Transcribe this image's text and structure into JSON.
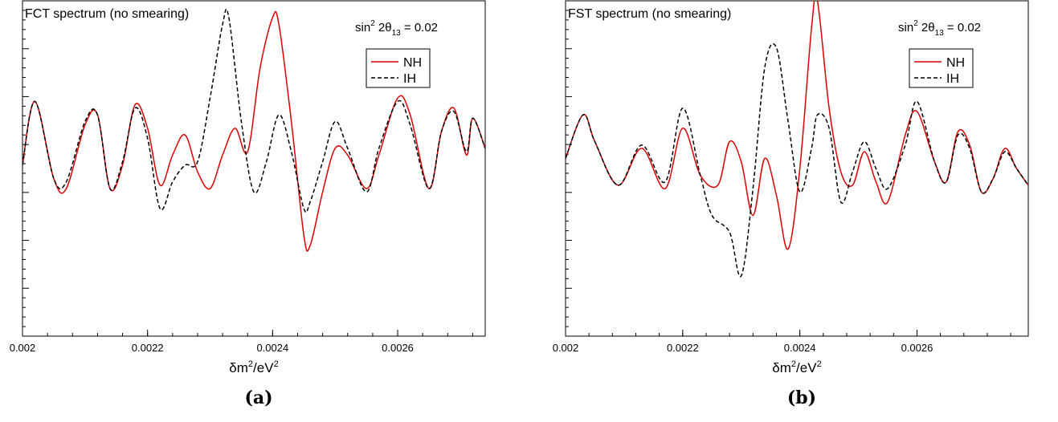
{
  "chart_data": [
    {
      "type": "line",
      "panel": "a",
      "title": "FCT spectrum (no smearing)",
      "annotation": {
        "text": "sin",
        "sup": "2",
        "mid": " 2θ",
        "sub": "13",
        "tail": " = 0.02"
      },
      "xlabel": {
        "text": "δm",
        "sup1": "2",
        "mid": "/eV",
        "sup2": "2"
      },
      "caption": "(a)",
      "xlim": [
        0.002,
        0.00274
      ],
      "ylim": [
        0,
        100
      ],
      "xticks": [
        0.002,
        0.0022,
        0.0024,
        0.0026
      ],
      "xtick_labels": [
        "0.002",
        "0.0022",
        "0.0024",
        "0.0026"
      ],
      "legend_position": "top-right",
      "series": [
        {
          "name": "NH",
          "color": "#dd0000",
          "dash": false,
          "x": [
            0.002,
            0.00202,
            0.00205,
            0.00207,
            0.0021,
            0.00212,
            0.00214,
            0.00216,
            0.00218,
            0.0022,
            0.00222,
            0.00224,
            0.00226,
            0.00228,
            0.0023,
            0.00232,
            0.00234,
            0.00236,
            0.00238,
            0.0024,
            0.00241,
            0.00243,
            0.00245,
            0.00246,
            0.00248,
            0.0025,
            0.00252,
            0.00255,
            0.00257,
            0.0026,
            0.00262,
            0.00265,
            0.00267,
            0.00269,
            0.00271,
            0.00272,
            0.00274
          ],
          "y": [
            51,
            70,
            47,
            44,
            63,
            66,
            44,
            51,
            69,
            62,
            45,
            54,
            60,
            49,
            44,
            54,
            62,
            55,
            80,
            95,
            93,
            64,
            30,
            27,
            43,
            56,
            54,
            44,
            54,
            71,
            66,
            44,
            61,
            68,
            54,
            65,
            56
          ]
        },
        {
          "name": "IH",
          "color": "#000000",
          "dash": true,
          "x": [
            0.002,
            0.00202,
            0.00205,
            0.00207,
            0.0021,
            0.00212,
            0.00214,
            0.00216,
            0.00218,
            0.0022,
            0.00222,
            0.00224,
            0.00226,
            0.00228,
            0.0023,
            0.00232,
            0.00233,
            0.00235,
            0.00237,
            0.00239,
            0.00241,
            0.00243,
            0.00245,
            0.00246,
            0.00248,
            0.0025,
            0.00252,
            0.00255,
            0.00257,
            0.0026,
            0.00262,
            0.00265,
            0.00267,
            0.00269,
            0.00271,
            0.00272,
            0.00274
          ],
          "y": [
            51,
            70,
            47,
            46,
            64,
            66,
            44,
            52,
            68,
            59,
            38,
            46,
            51,
            52,
            71,
            93,
            95,
            64,
            43,
            52,
            66,
            55,
            38,
            40,
            52,
            64,
            56,
            43,
            56,
            70,
            63,
            44,
            61,
            67,
            55,
            65,
            56
          ]
        }
      ]
    },
    {
      "type": "line",
      "panel": "b",
      "title": "FST spectrum (no smearing)",
      "annotation": {
        "text": "sin",
        "sup": "2",
        "mid": " 2θ",
        "sub": "13",
        "tail": " = 0.02"
      },
      "xlabel": {
        "text": "δm",
        "sup1": "2",
        "mid": "/eV",
        "sup2": "2"
      },
      "caption": "(b)",
      "xlim": [
        0.002,
        0.00279
      ],
      "ylim": [
        0,
        100
      ],
      "xticks": [
        0.002,
        0.0022,
        0.0024,
        0.0026
      ],
      "xtick_labels": [
        "0.002",
        "0.0022",
        "0.0024",
        "0.0026"
      ],
      "legend_position": "top-right",
      "series": [
        {
          "name": "NH",
          "color": "#dd0000",
          "dash": false,
          "x": [
            0.002,
            0.00203,
            0.00205,
            0.00209,
            0.00213,
            0.00217,
            0.0022,
            0.00223,
            0.00226,
            0.00228,
            0.0023,
            0.00232,
            0.00234,
            0.00236,
            0.00238,
            0.0024,
            0.00242,
            0.00243,
            0.00245,
            0.00247,
            0.00249,
            0.00251,
            0.00253,
            0.00255,
            0.00258,
            0.0026,
            0.00263,
            0.00265,
            0.00267,
            0.00269,
            0.00271,
            0.00273,
            0.00275,
            0.00277,
            0.00279
          ],
          "y": [
            53,
            66,
            58,
            45,
            56,
            44,
            62,
            48,
            45,
            58,
            52,
            36,
            53,
            42,
            26,
            50,
            92,
            100,
            68,
            49,
            45,
            55,
            46,
            40,
            60,
            67,
            52,
            46,
            61,
            57,
            43,
            47,
            56,
            50,
            45
          ]
        },
        {
          "name": "IH",
          "color": "#000000",
          "dash": true,
          "x": [
            0.002,
            0.00203,
            0.00205,
            0.00209,
            0.00213,
            0.00217,
            0.0022,
            0.00223,
            0.00225,
            0.00228,
            0.0023,
            0.00232,
            0.00234,
            0.00236,
            0.00238,
            0.0024,
            0.00242,
            0.00243,
            0.00245,
            0.00247,
            0.00249,
            0.00251,
            0.00253,
            0.00255,
            0.00258,
            0.0026,
            0.00263,
            0.00265,
            0.00267,
            0.00269,
            0.00271,
            0.00273,
            0.00275,
            0.00277,
            0.00279
          ],
          "y": [
            53,
            66,
            58,
            45,
            57,
            46,
            68,
            48,
            36,
            31,
            18,
            44,
            80,
            86,
            64,
            43,
            56,
            66,
            62,
            40,
            49,
            58,
            50,
            44,
            57,
            70,
            52,
            46,
            60,
            56,
            43,
            47,
            55,
            50,
            45
          ]
        }
      ]
    }
  ]
}
